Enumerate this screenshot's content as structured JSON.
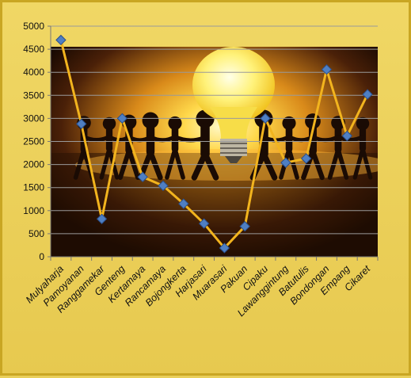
{
  "chart_data": {
    "type": "line",
    "title": "",
    "xlabel": "",
    "ylabel": "",
    "ylim": [
      0,
      5000
    ],
    "yticks": [
      0,
      500,
      1000,
      1500,
      2000,
      2500,
      3000,
      3500,
      4000,
      4500,
      5000
    ],
    "grid": true,
    "legend": "none",
    "categories": [
      "Mulyaharja",
      "Pamoyanan",
      "Ranggamekar",
      "Genteng",
      "Kertamaya",
      "Rancamaya",
      "Bojongkerta",
      "Harjasari",
      "Muarasari",
      "Pakuan",
      "Cipaku",
      "Lawanggintung",
      "Batutulis",
      "Bondongan",
      "Empang",
      "Cikaret"
    ],
    "series": [
      {
        "values": [
          4700,
          2880,
          820,
          3000,
          1730,
          1540,
          1150,
          720,
          190,
          660,
          3000,
          2040,
          2130,
          4060,
          2620,
          3520
        ]
      }
    ],
    "colors": {
      "line": "#f2b41e",
      "marker": "#4f7fc2",
      "marker_edge": "#2a4f8c",
      "background": "#ecd25c",
      "border": "#c9a623"
    },
    "background_image": "light-bulb-with-people-holding-hands-photo"
  }
}
